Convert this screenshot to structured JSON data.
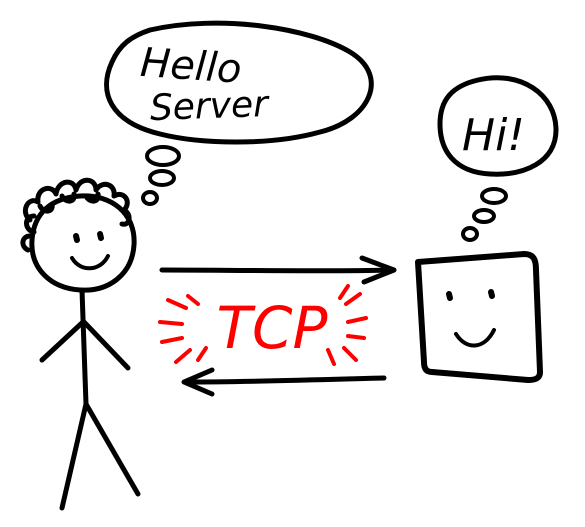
{
  "client": {
    "speech_line1": "Hello",
    "speech_line2": "Server"
  },
  "server": {
    "speech": "Hi!"
  },
  "connection": {
    "label": "TCP"
  },
  "colors": {
    "ink": "#000000",
    "accent": "#ff0000",
    "background": "#ffffff"
  }
}
